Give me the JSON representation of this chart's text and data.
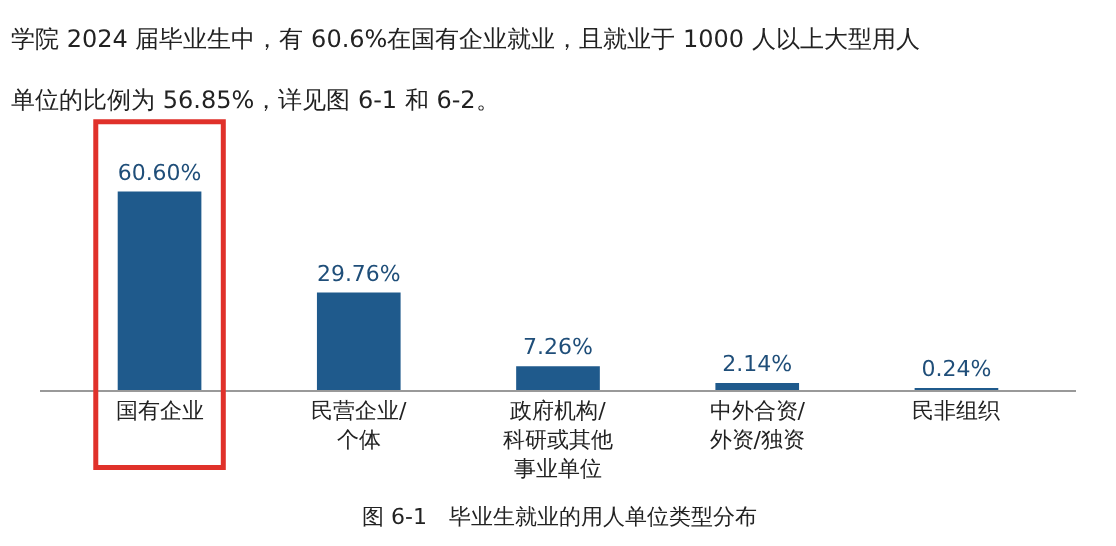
{
  "chart_data": {
    "type": "bar",
    "title": "学院 2024 届毕业生中，有 60.6%在国有企业就业，且就业于 1000 人以上大型用人",
    "subtitle": "单位的比例为 56.85%，详见图 6-1 和 6-2。",
    "categories": [
      "国有企业",
      "民营企业/个体",
      "政府机构/科研或其他事业单位",
      "中外合资/外资/独资",
      "民非组织"
    ],
    "values": [
      60.6,
      29.76,
      7.26,
      2.14,
      0.24
    ],
    "value_labels": [
      "60.60%",
      "29.76%",
      "7.26%",
      "2.14%",
      "0.24%"
    ],
    "color": "#1f5a8c",
    "annotations": [
      "图 6-1　毕业生就业的用人单位类型分布"
    ],
    "legend": false
  }
}
